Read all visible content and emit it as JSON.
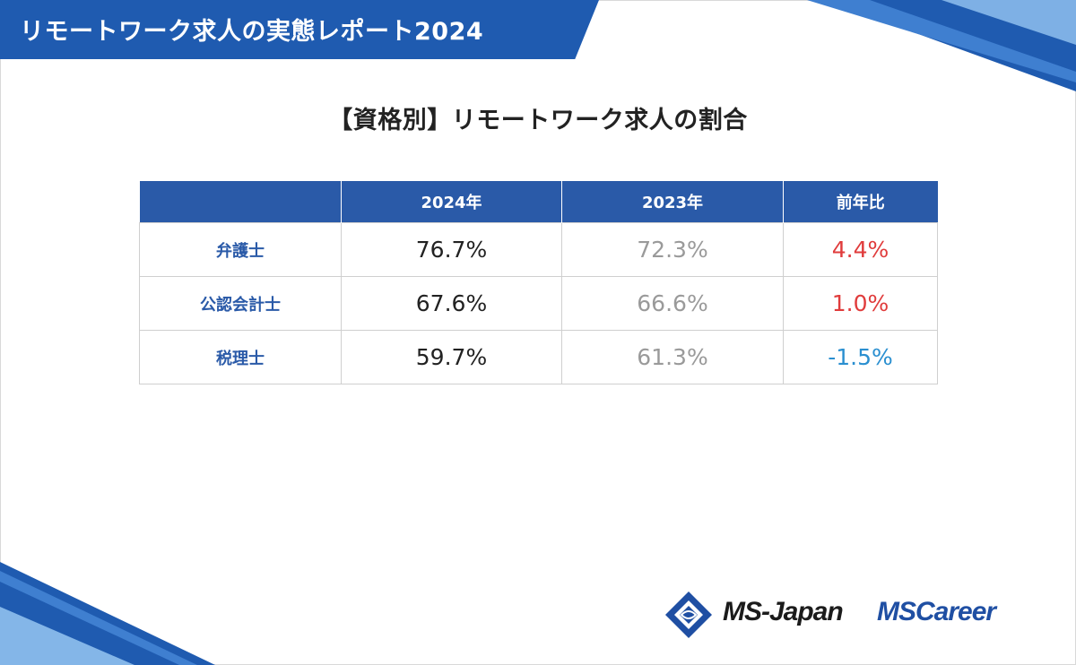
{
  "header": {
    "title": "リモートワーク求人の実態レポート2024"
  },
  "subtitle": "【資格別】リモートワーク求人の割合",
  "table": {
    "columns": [
      "",
      "2024年",
      "2023年",
      "前年比"
    ],
    "rows": [
      {
        "label": "弁護士",
        "y2024": "76.7%",
        "y2023": "72.3%",
        "yoy": "4.4%",
        "yoy_color": "#e03c3c"
      },
      {
        "label": "公認会計士",
        "y2024": "67.6%",
        "y2023": "66.6%",
        "yoy": "1.0%",
        "yoy_color": "#e03c3c"
      },
      {
        "label": "税理士",
        "y2024": "59.7%",
        "y2023": "61.3%",
        "yoy": "-1.5%",
        "yoy_color": "#2a8fd0"
      }
    ]
  },
  "logos": {
    "ms_japan": "MS-Japan",
    "ms_career": "MSCareer"
  },
  "colors": {
    "brand_blue": "#1f5bb0",
    "header_blue": "#2a5aa8",
    "positive_red": "#e03c3c",
    "negative_blue": "#2a8fd0"
  }
}
